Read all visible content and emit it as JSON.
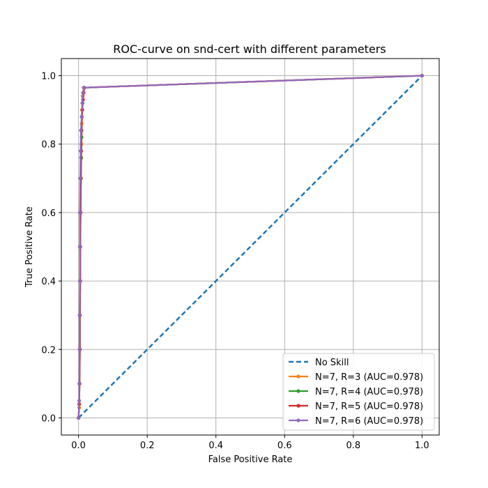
{
  "chart_data": {
    "type": "line",
    "title": "ROC-curve on snd-cert with different parameters",
    "xlabel": "False Positive Rate",
    "ylabel": "True Positive Rate",
    "xlim": [
      -0.05,
      1.05
    ],
    "ylim": [
      -0.05,
      1.05
    ],
    "xticks": [
      "0.0",
      "0.2",
      "0.4",
      "0.6",
      "0.8",
      "1.0"
    ],
    "yticks": [
      "0.0",
      "0.2",
      "0.4",
      "0.6",
      "0.8",
      "1.0"
    ],
    "grid": true,
    "legend_position": "lower-right",
    "series": [
      {
        "name": "No Skill",
        "style": "dashed",
        "markers": false,
        "color": "#1f77b4",
        "points": [
          [
            0.0,
            0.0
          ],
          [
            1.0,
            1.0
          ]
        ]
      },
      {
        "name": "N=7, R=3 (AUC=0.978)",
        "style": "solid",
        "markers": true,
        "color": "#ff7f0e",
        "points": [
          [
            0.0,
            0.0
          ],
          [
            0.002,
            0.03
          ],
          [
            0.003,
            0.1
          ],
          [
            0.004,
            0.2
          ],
          [
            0.004,
            0.3
          ],
          [
            0.005,
            0.4
          ],
          [
            0.005,
            0.5
          ],
          [
            0.006,
            0.6
          ],
          [
            0.006,
            0.7
          ],
          [
            0.007,
            0.76
          ],
          [
            0.008,
            0.8
          ],
          [
            0.009,
            0.86
          ],
          [
            0.01,
            0.9
          ],
          [
            0.012,
            0.94
          ],
          [
            0.015,
            0.965
          ],
          [
            1.0,
            1.0
          ]
        ]
      },
      {
        "name": "N=7, R=4 (AUC=0.978)",
        "style": "solid",
        "markers": true,
        "color": "#2ca02c",
        "points": [
          [
            0.0,
            0.0
          ],
          [
            0.002,
            0.04
          ],
          [
            0.003,
            0.1
          ],
          [
            0.004,
            0.2
          ],
          [
            0.004,
            0.3
          ],
          [
            0.005,
            0.4
          ],
          [
            0.005,
            0.5
          ],
          [
            0.006,
            0.6
          ],
          [
            0.007,
            0.7
          ],
          [
            0.008,
            0.76
          ],
          [
            0.009,
            0.82
          ],
          [
            0.01,
            0.88
          ],
          [
            0.012,
            0.92
          ],
          [
            0.014,
            0.95
          ],
          [
            0.016,
            0.965
          ],
          [
            1.0,
            1.0
          ]
        ]
      },
      {
        "name": "N=7, R=5 (AUC=0.978)",
        "style": "solid",
        "markers": true,
        "color": "#d62728",
        "points": [
          [
            0.0,
            0.0
          ],
          [
            0.002,
            0.04
          ],
          [
            0.003,
            0.1
          ],
          [
            0.004,
            0.2
          ],
          [
            0.004,
            0.3
          ],
          [
            0.005,
            0.4
          ],
          [
            0.005,
            0.5
          ],
          [
            0.006,
            0.6
          ],
          [
            0.007,
            0.7
          ],
          [
            0.008,
            0.78
          ],
          [
            0.009,
            0.84
          ],
          [
            0.011,
            0.9
          ],
          [
            0.013,
            0.93
          ],
          [
            0.015,
            0.95
          ],
          [
            0.017,
            0.965
          ],
          [
            1.0,
            1.0
          ]
        ]
      },
      {
        "name": "N=7, R=6 (AUC=0.978)",
        "style": "solid",
        "markers": true,
        "color": "#9467bd",
        "points": [
          [
            0.0,
            0.0
          ],
          [
            0.002,
            0.05
          ],
          [
            0.002,
            0.1
          ],
          [
            0.003,
            0.2
          ],
          [
            0.003,
            0.3
          ],
          [
            0.004,
            0.4
          ],
          [
            0.004,
            0.5
          ],
          [
            0.004,
            0.6
          ],
          [
            0.005,
            0.7
          ],
          [
            0.006,
            0.78
          ],
          [
            0.007,
            0.84
          ],
          [
            0.009,
            0.88
          ],
          [
            0.011,
            0.92
          ],
          [
            0.013,
            0.95
          ],
          [
            0.016,
            0.965
          ],
          [
            1.0,
            1.0
          ]
        ]
      }
    ]
  }
}
